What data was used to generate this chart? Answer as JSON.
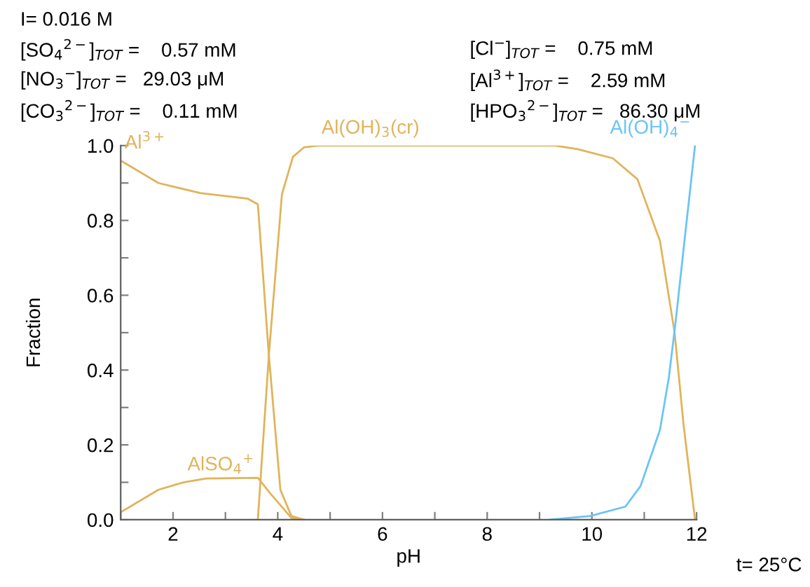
{
  "chart_data": {
    "type": "line",
    "xlabel": "pH",
    "ylabel": "Fraction",
    "xlim": [
      1,
      12
    ],
    "ylim": [
      0,
      1.0
    ],
    "xticks": [
      {
        "value": 1,
        "label": null
      },
      2,
      {
        "value": 3,
        "label": null
      },
      4,
      {
        "value": 5,
        "label": null
      },
      6,
      {
        "value": 7,
        "label": null
      },
      8,
      {
        "value": 9,
        "label": null
      },
      10,
      {
        "value": 11,
        "label": null
      },
      12
    ],
    "yticks": [
      {
        "value": 0,
        "label": "0.0"
      },
      {
        "value": 0.1,
        "label": null
      },
      0.2,
      {
        "value": 0.3,
        "label": null
      },
      0.4,
      {
        "value": 0.5,
        "label": null
      },
      0.6,
      {
        "value": 0.7,
        "label": null
      },
      0.8,
      {
        "value": 0.9,
        "label": null
      },
      {
        "value": 1.0,
        "label": "1.0"
      }
    ],
    "grid": false,
    "legend": false,
    "marker": "none",
    "line_style": "solid",
    "series": [
      {
        "color": "#e0b45a",
        "x": [
          1,
          1.72,
          2.52,
          3.43,
          3.62,
          3.83,
          4.05,
          4.26,
          4.5
        ],
        "values": [
          0.96,
          0.9,
          0.873,
          0.858,
          0.843,
          0.44,
          0.08,
          0.01,
          0
        ]
      },
      {
        "color": "#e0b45a",
        "x": [
          1,
          1.72,
          2.2,
          2.63,
          3.62,
          3.86,
          4.26,
          4.5
        ],
        "values": [
          0.02,
          0.08,
          0.1,
          0.11,
          0.112,
          0.07,
          0.005,
          0
        ]
      },
      {
        "color": "#e0b45a",
        "x": [
          3.62,
          3.83,
          4.08,
          4.29,
          4.5,
          4.76,
          9.3,
          9.74,
          10.4,
          10.87,
          11.3,
          11.58,
          11.75,
          11.97
        ],
        "values": [
          0,
          0.44,
          0.87,
          0.97,
          0.995,
          1.0,
          1.0,
          0.99,
          0.966,
          0.91,
          0.745,
          0.5,
          0.255,
          0
        ]
      },
      {
        "color": "#6cc4f5",
        "x": [
          9.2,
          9.97,
          10.64,
          10.93,
          11.3,
          11.47,
          11.6,
          11.78,
          11.97
        ],
        "values": [
          0,
          0.01,
          0.035,
          0.09,
          0.24,
          0.38,
          0.53,
          0.76,
          1.0
        ]
      }
    ],
    "annotations": [
      {
        "text": "Al$^{3+}$",
        "x": 1,
        "y": 0.96
      },
      {
        "text": "AlSO$_{4}$$^{+}$",
        "x": 2.2,
        "y": 0.1
      },
      {
        "text": "Al(OH)$_{3}$(cr)",
        "x": 4.76,
        "y": 1.0
      },
      {
        "text": "Al(OH)$_{4}$$^{−}$",
        "x": 11.97,
        "y": 1.0
      },
      "I= 0.016 M",
      "[SO$_{4}$$^{2−}$]$_{TOT}$ =    0.57 mM",
      "[Cl$^{−}$]$_{TOT}$ =    0.75 mM",
      "[NO$_{3}$$^{−}$]$_{TOT}$ =   29.03 μM",
      "[Al$^{3+}$]$_{TOT}$ =    2.59 mM",
      "[CO$_{3}$$^{2−}$]$_{TOT}$ =    0.11 mM",
      "[HPO$_{3}$$^{2−}$]$_{TOT}$ =   86.30 μM",
      "t= 25°C"
    ]
  }
}
